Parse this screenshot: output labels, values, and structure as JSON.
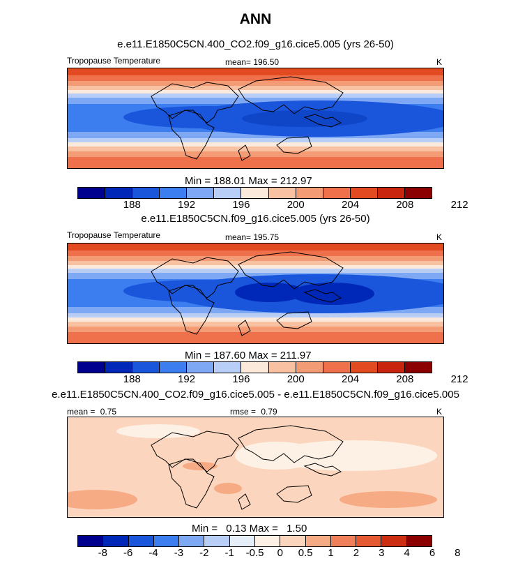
{
  "figure": {
    "title": "ANN"
  },
  "colors": {
    "abs_scale": [
      "#00008f",
      "#0028b8",
      "#1a56dc",
      "#3c7ef0",
      "#7ea8f4",
      "#b8cef6",
      "#fbe9db",
      "#f8c2a2",
      "#f39b74",
      "#ee714b",
      "#e24a22",
      "#c8240e",
      "#8b0000"
    ],
    "diff_scale": [
      "#00008f",
      "#0028b8",
      "#1a56dc",
      "#3c7ef0",
      "#7ea8f4",
      "#b8cef6",
      "#e6eef9",
      "#fdf0e4",
      "#fbd5bd",
      "#f6ab85",
      "#ef8059",
      "#e55a33",
      "#cc2e12",
      "#8b0000"
    ]
  },
  "chart_data": [
    {
      "type": "heatmap",
      "title": "e.e11.E1850C5CN.400_CO2.f09_g16.cice5.005 (yrs 26-50)",
      "left_label": "Tropopause Temperature",
      "mean_label": "mean=",
      "mean_value": "196.50",
      "units": "K",
      "min_label": "Min =",
      "min_value": "188.01",
      "max_label": "Max =",
      "max_value": "212.97",
      "colorbar_ticks": [
        "188",
        "192",
        "196",
        "200",
        "204",
        "208",
        "212"
      ],
      "min": 188.01,
      "max": 212.97,
      "mean": 196.5
    },
    {
      "type": "heatmap",
      "title": "e.e11.E1850C5CN.f09_g16.cice5.005 (yrs 26-50)",
      "left_label": "Tropopause Temperature",
      "mean_label": "mean=",
      "mean_value": "195.75",
      "units": "K",
      "min_label": "Min =",
      "min_value": "187.60",
      "max_label": "Max =",
      "max_value": "211.97",
      "colorbar_ticks": [
        "188",
        "192",
        "196",
        "200",
        "204",
        "208",
        "212"
      ],
      "min": 187.6,
      "max": 211.97,
      "mean": 195.75
    },
    {
      "type": "heatmap",
      "title": "e.e11.E1850C5CN.400_CO2.f09_g16.cice5.005 - e.e11.E1850C5CN.f09_g16.cice5.005",
      "left_label": "mean =",
      "left_value": "0.75",
      "rmse_label": "rmse =",
      "rmse_value": "0.79",
      "units": "K",
      "min_label": "Min =",
      "min_value": "0.13",
      "max_label": "Max =",
      "max_value": "1.50",
      "colorbar_ticks": [
        "-8",
        "-6",
        "-4",
        "-3",
        "-2",
        "-1",
        "-0.5",
        "0",
        "0.5",
        "1",
        "2",
        "3",
        "4",
        "6",
        "8"
      ],
      "min": 0.13,
      "max": 1.5,
      "mean": 0.75,
      "rmse": 0.79
    }
  ]
}
